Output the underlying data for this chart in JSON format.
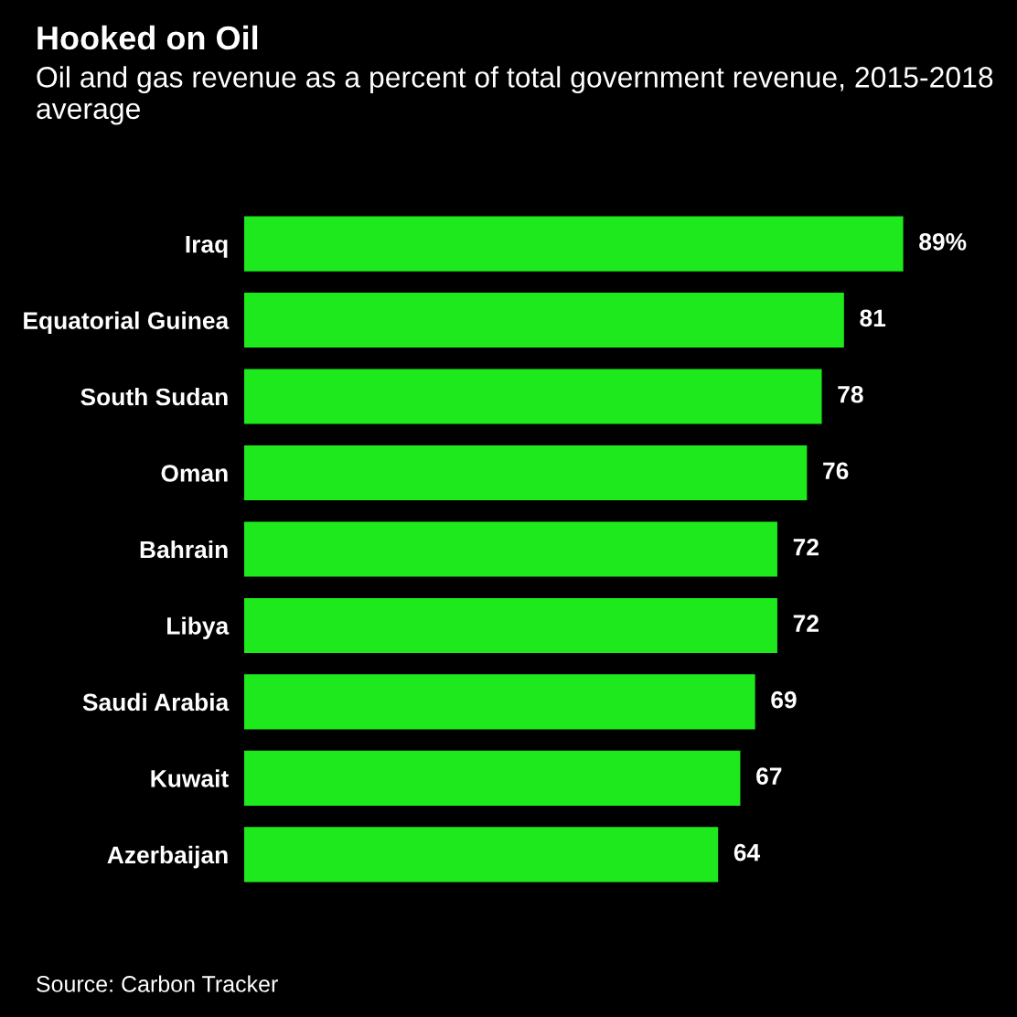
{
  "chart_data": {
    "type": "bar",
    "orientation": "horizontal",
    "title": "Hooked on Oil",
    "subtitle": "Oil and gas revenue as a percent of total government revenue, 2015-2018 average",
    "categories": [
      "Iraq",
      "Equatorial Guinea",
      "South Sudan",
      "Oman",
      "Bahrain",
      "Libya",
      "Saudi Arabia",
      "Kuwait",
      "Azerbaijan"
    ],
    "values": [
      89,
      81,
      78,
      76,
      72,
      72,
      69,
      67,
      64
    ],
    "value_labels": [
      "89%",
      "81",
      "78",
      "76",
      "72",
      "72",
      "69",
      "67",
      "64"
    ],
    "color": "#1de91d",
    "grid": false,
    "legend": false,
    "annotations": [
      "Source: Carbon Tracker"
    ]
  }
}
